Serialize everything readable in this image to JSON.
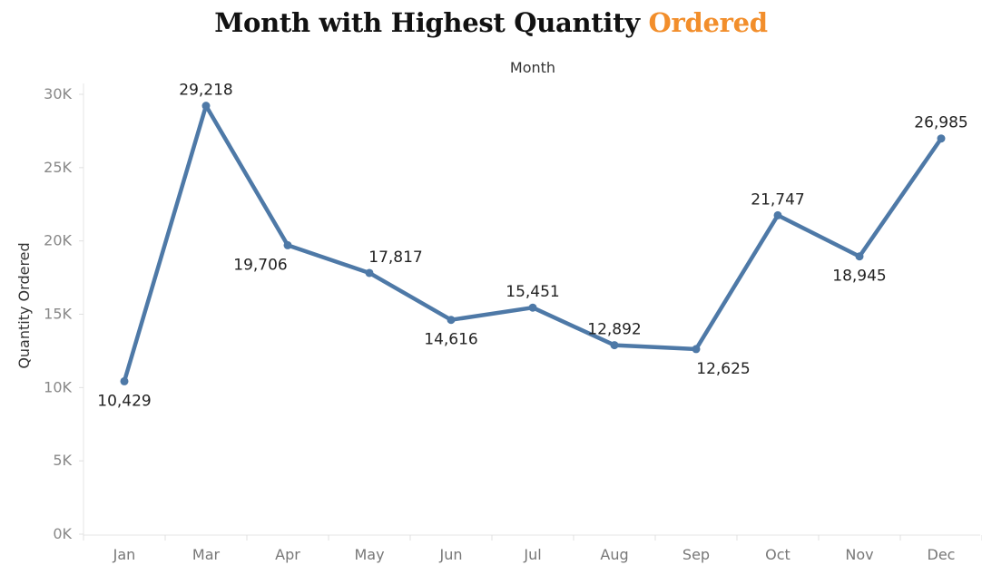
{
  "title": {
    "main": "Month with Highest Quantity",
    "accent": "Ordered"
  },
  "chart_data": {
    "type": "line",
    "title": "Month with Highest Quantity Ordered",
    "xlabel": "Month",
    "ylabel": "Quantity Ordered",
    "categories": [
      "Jan",
      "Mar",
      "Apr",
      "May",
      "Jun",
      "Jul",
      "Aug",
      "Sep",
      "Oct",
      "Nov",
      "Dec"
    ],
    "series": [
      {
        "values": [
          10429,
          29218,
          19706,
          17817,
          14616,
          15451,
          12892,
          12625,
          21747,
          18945,
          26985
        ],
        "color": "#4e79a7"
      }
    ],
    "data_labels": [
      "10,429",
      "29,218",
      "19,706",
      "17,817",
      "14,616",
      "15,451",
      "12,892",
      "12,625",
      "21,747",
      "18,945",
      "26,985"
    ],
    "ylim": [
      0,
      30000
    ],
    "yticks": [
      0,
      5000,
      10000,
      15000,
      20000,
      25000,
      30000
    ],
    "ytick_labels": [
      "0K",
      "5K",
      "10K",
      "15K",
      "20K",
      "25K",
      "30K"
    ],
    "grid": false,
    "accent_color": "#f28e2b"
  }
}
